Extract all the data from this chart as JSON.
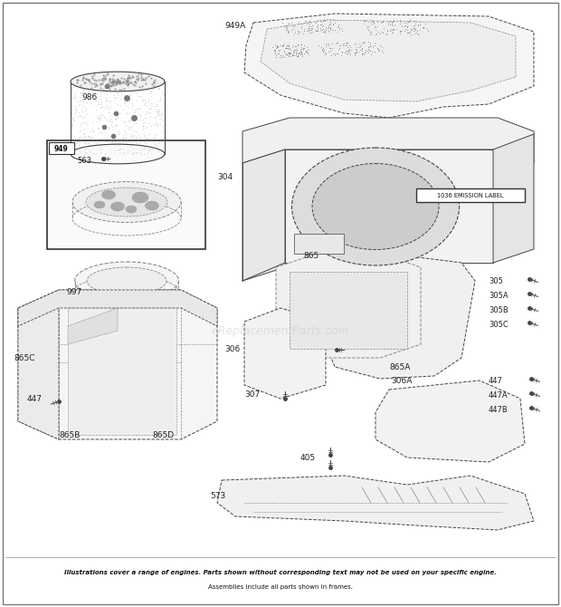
{
  "bg_color": "#ffffff",
  "border_color": "#999999",
  "text_color": "#222222",
  "line_color": "#444444",
  "stipple_color": "#bbbbbb",
  "dashed_color": "#888888",
  "footnote_line1": "Illustrations cover a range of engines. Parts shown without corresponding text may not be used on your specific engine.",
  "footnote_line2": "Assemblies include all parts shown in frames.",
  "watermark": "eReplacementParts.com",
  "fig_w": 6.2,
  "fig_h": 6.7,
  "dpi": 100
}
